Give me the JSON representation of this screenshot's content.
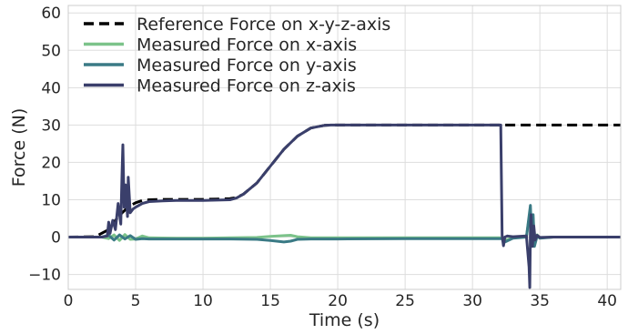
{
  "chart_data": {
    "type": "line",
    "title": "",
    "xlabel": "Time (s)",
    "ylabel": "Force (N)",
    "xlim": [
      0,
      41
    ],
    "ylim": [
      -14,
      62
    ],
    "xticks": [
      0,
      5,
      10,
      15,
      20,
      25,
      30,
      35,
      40
    ],
    "yticks": [
      -10,
      0,
      10,
      20,
      30,
      40,
      50,
      60
    ],
    "grid": true,
    "legend_position": "top-left",
    "series": [
      {
        "name": "Reference Force on x-y-z-axis",
        "color": "#000000",
        "style": "dashed",
        "x": [
          0,
          2.0,
          3.0,
          3.5,
          4.0,
          4.5,
          5.0,
          5.5,
          6.0,
          7.0,
          8.0,
          9.0,
          10.0,
          11.0,
          12.0,
          12.5,
          13.0,
          14.0,
          15.0,
          16.0,
          17.0,
          18.0,
          19.0,
          19.5,
          20.0,
          25.0,
          30.0,
          32.2,
          35.0,
          41.0
        ],
        "y": [
          0,
          0.1,
          2.0,
          4.5,
          6.5,
          8.2,
          9.2,
          9.8,
          10.0,
          10.1,
          10.1,
          10.1,
          10.1,
          10.2,
          10.3,
          10.6,
          11.5,
          14.5,
          19.0,
          23.5,
          27.0,
          29.2,
          29.9,
          30.0,
          30.0,
          30.0,
          30.0,
          30.0,
          30.0,
          30.0
        ]
      },
      {
        "name": "Measured Force on x-axis",
        "color": "#7cc38a",
        "style": "solid",
        "x": [
          0,
          2.5,
          3.0,
          3.4,
          3.8,
          4.2,
          4.6,
          5.0,
          5.5,
          6,
          8,
          10,
          12,
          14,
          15,
          16,
          16.5,
          17,
          18,
          20,
          25,
          30,
          32.2,
          32.3,
          33,
          34,
          34.3,
          34.4,
          34.5,
          34.6,
          34.8,
          35,
          36,
          41
        ],
        "y": [
          0,
          0,
          -0.4,
          0.6,
          -0.9,
          0.7,
          -0.6,
          -0.5,
          0.3,
          -0.2,
          -0.3,
          -0.3,
          -0.2,
          -0.1,
          0.2,
          0.4,
          0.5,
          0.1,
          -0.2,
          -0.2,
          -0.2,
          -0.2,
          -0.2,
          -1.0,
          -0.2,
          0.1,
          7.5,
          -1.0,
          5.0,
          -1.5,
          0.6,
          -0.2,
          0,
          0
        ]
      },
      {
        "name": "Measured Force on y-axis",
        "color": "#3a7a85",
        "style": "solid",
        "x": [
          0,
          2.5,
          3.0,
          3.4,
          3.8,
          4.2,
          4.6,
          5.0,
          5.5,
          6,
          8,
          10,
          12,
          14,
          15,
          16,
          16.5,
          17,
          18,
          20,
          25,
          30,
          32.2,
          32.3,
          33,
          34,
          34.3,
          34.4,
          34.5,
          34.6,
          34.8,
          35,
          36,
          41
        ],
        "y": [
          0,
          0,
          0.5,
          -0.8,
          0.6,
          -0.5,
          0.4,
          -0.6,
          -0.4,
          -0.5,
          -0.5,
          -0.5,
          -0.5,
          -0.6,
          -0.9,
          -1.3,
          -1.1,
          -0.6,
          -0.5,
          -0.5,
          -0.4,
          -0.4,
          -0.4,
          -1.5,
          -0.3,
          0,
          8.5,
          -2.0,
          6.0,
          -2.5,
          0.3,
          -0.3,
          0,
          0
        ]
      },
      {
        "name": "Measured Force on z-axis",
        "color": "#3a3f6b",
        "style": "solid",
        "x": [
          0,
          2.5,
          2.9,
          3.0,
          3.1,
          3.3,
          3.5,
          3.7,
          3.9,
          4.0,
          4.05,
          4.15,
          4.25,
          4.4,
          4.45,
          4.6,
          4.8,
          5.0,
          5.5,
          6.0,
          7.0,
          8.0,
          9.0,
          10.0,
          11.0,
          12.0,
          12.5,
          13.0,
          14.0,
          15.0,
          16.0,
          17.0,
          18.0,
          19.0,
          19.5,
          20.0,
          25.0,
          30.0,
          32.1,
          32.2,
          32.3,
          32.4,
          32.6,
          33.0,
          34.0,
          34.2,
          34.25,
          34.3,
          34.35,
          34.45,
          34.55,
          34.65,
          34.8,
          35.0,
          36.0,
          41.0
        ],
        "y": [
          0,
          0,
          0.3,
          4.0,
          1.0,
          4.5,
          2.0,
          9.0,
          3.5,
          18.0,
          24.7,
          8.0,
          14.0,
          5.5,
          16.0,
          6.5,
          7.5,
          8.0,
          9.0,
          9.5,
          9.7,
          9.8,
          9.8,
          9.8,
          9.9,
          10.0,
          10.5,
          11.5,
          14.5,
          19.0,
          23.5,
          27.0,
          29.2,
          29.9,
          30.0,
          30.0,
          30.0,
          30.0,
          30.0,
          0.5,
          -2.3,
          0,
          0.3,
          0.1,
          0.3,
          -8.0,
          -13.5,
          2.0,
          6.0,
          -2.5,
          3.0,
          -0.8,
          0.5,
          -0.1,
          0,
          0
        ]
      }
    ]
  }
}
